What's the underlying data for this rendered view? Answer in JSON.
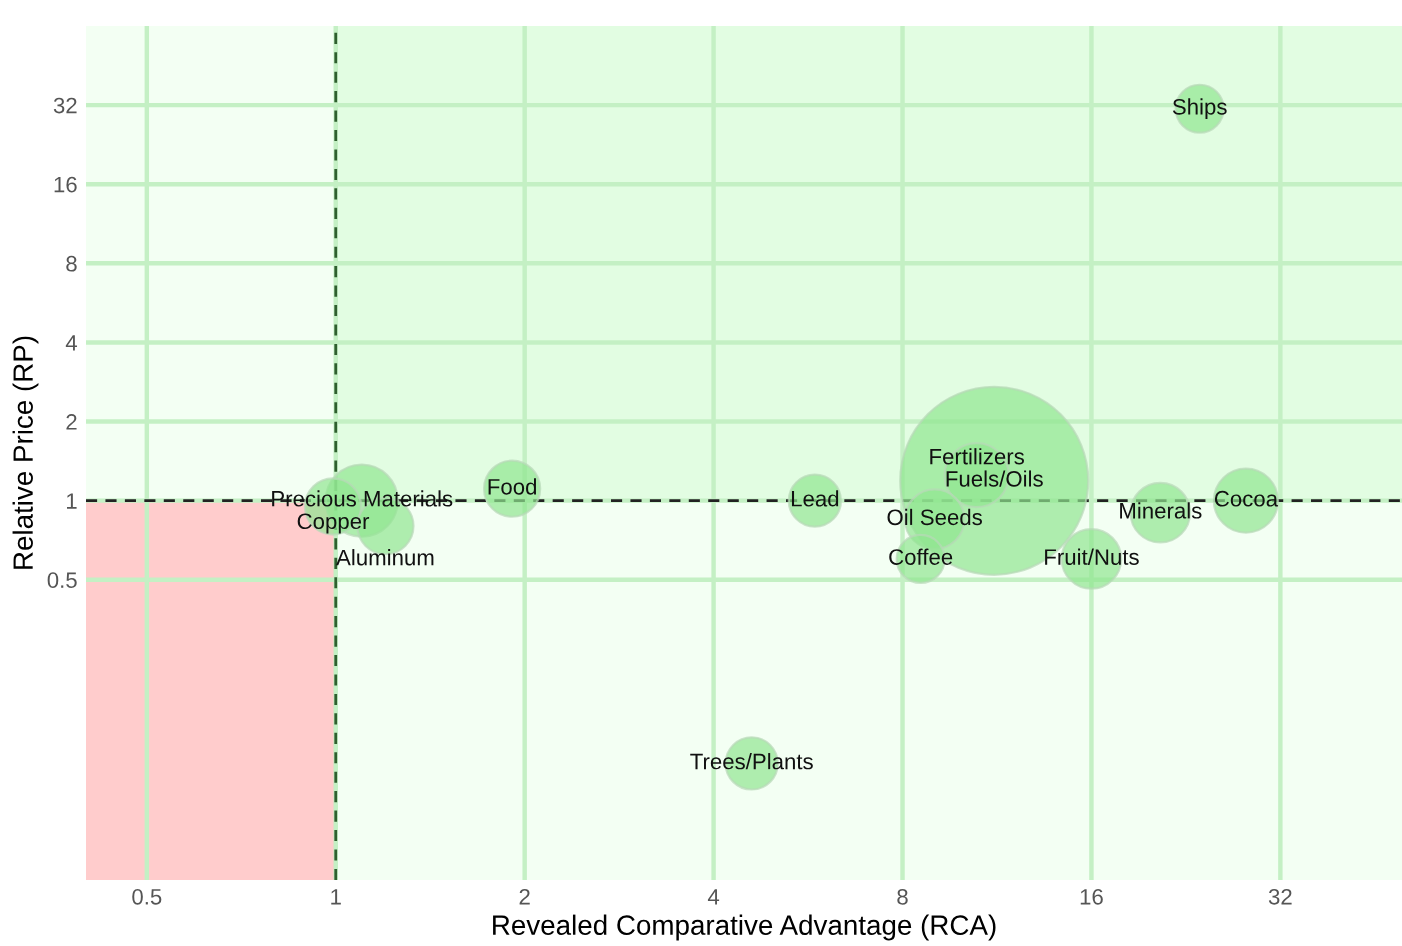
{
  "chart_data": {
    "type": "bubble",
    "xlabel": "Revealed Comparative Advantage (RCA)",
    "ylabel": "Relative Price (RP)",
    "log": "xy",
    "xlim": [
      0.4,
      50
    ],
    "ylim": [
      0.036,
      64
    ],
    "xticks": [
      0.5,
      1,
      2,
      4,
      8,
      16,
      32
    ],
    "yticks": [
      0.5,
      1,
      2,
      4,
      8,
      16,
      32
    ],
    "grid": true,
    "series": [
      {
        "color": "#90e690",
        "x": [
          23.8,
          28.2,
          20.6,
          16,
          11.2,
          10.5,
          9.0,
          8.55,
          5.8,
          4.6,
          1.91,
          1.1,
          0.99,
          1.2
        ],
        "values": [
          31,
          1.0,
          0.9,
          0.6,
          1.19,
          1.25,
          0.85,
          0.6,
          1.0,
          0.1,
          1.11,
          1.0,
          0.95,
          0.8
        ],
        "sizes": [
          0.065,
          0.116,
          0.1,
          0.1,
          1,
          0.116,
          0.1,
          0.065,
          0.077,
          0.077,
          0.089,
          0.147,
          0.089,
          0.089
        ]
      }
    ],
    "annotations": [
      {
        "text": "Ships",
        "x": 23.8,
        "y": 31
      },
      {
        "text": "Cocoa",
        "x": 28.2,
        "y": 1.0
      },
      {
        "text": "Minerals",
        "x": 20.6,
        "y": 0.9
      },
      {
        "text": "Fruit/Nuts",
        "x": 16,
        "y": 0.6
      },
      {
        "text": "Fuels/Oils",
        "x": 11.2,
        "y": 1.19
      },
      {
        "text": "Fertilizers",
        "x": 10.5,
        "y": 1.25
      },
      {
        "text": "Oil Seeds",
        "x": 9.0,
        "y": 0.85
      },
      {
        "text": "Coffee",
        "x": 8.55,
        "y": 0.6
      },
      {
        "text": "Lead",
        "x": 5.8,
        "y": 1.0
      },
      {
        "text": "Trees/Plants",
        "x": 4.6,
        "y": 0.1
      },
      {
        "text": "Food",
        "x": 1.91,
        "y": 1.11
      },
      {
        "text": "Precious Materials",
        "x": 1.1,
        "y": 1.0
      },
      {
        "text": "Copper",
        "x": 0.99,
        "y": 0.95
      },
      {
        "text": "Aluminum",
        "x": 1.2,
        "y": 0.8
      }
    ],
    "bands": [
      {
        "axis": "x",
        "from": 1,
        "to": 50,
        "color": "#e2fde2"
      },
      {
        "axis": "x",
        "from": 0.4,
        "to": 1,
        "color": "#ffcccc"
      }
    ],
    "ref_lines": [
      {
        "axis": "x",
        "value": 1,
        "color": "#2f5f2f",
        "line_style": "dashed"
      },
      {
        "axis": "y",
        "value": 1,
        "color": "#222222",
        "line_style": "dashed"
      }
    ]
  }
}
